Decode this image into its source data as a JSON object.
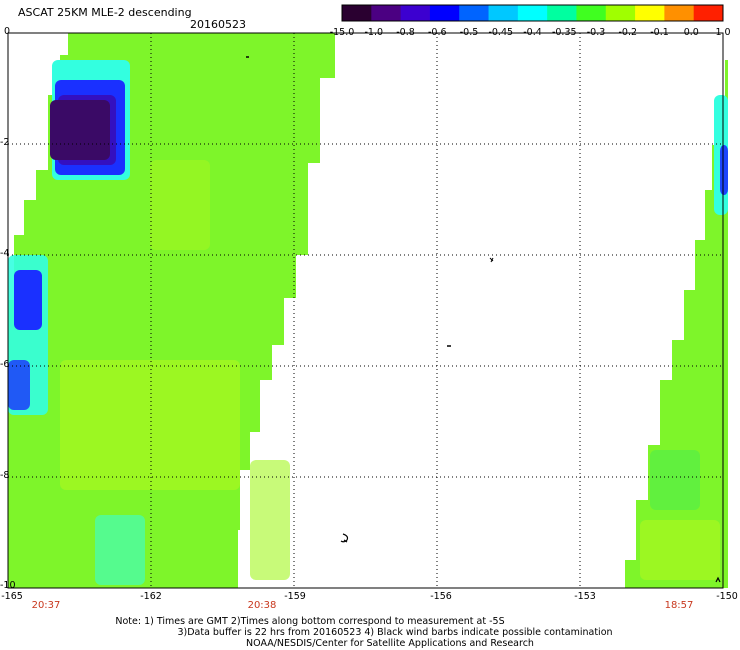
{
  "header": {
    "title": "ASCAT 25KM MLE-2 descending",
    "date": "20160523"
  },
  "colorbar": {
    "labels": [
      "-15.0",
      "-1.0",
      "-0.8",
      "-0.6",
      "-0.5",
      "-0.45",
      "-0.4",
      "-0.35",
      "-0.3",
      "-0.2",
      "-0.1",
      "0.0",
      "1.0"
    ],
    "colors": [
      "#2a0030",
      "#4b0082",
      "#3c00d0",
      "#0000ff",
      "#0064ff",
      "#00c8ff",
      "#00ffff",
      "#00ffa0",
      "#40ff20",
      "#a0ff00",
      "#ffff00",
      "#ff9000",
      "#ff2000"
    ]
  },
  "map": {
    "lon_range": [
      -165,
      -150
    ],
    "lat_range": [
      -10,
      0
    ],
    "lat_labels": [
      "0",
      "-2",
      "-4",
      "-6",
      "-8",
      "-10"
    ],
    "lon_labels": [
      "-165",
      "-162",
      "-159",
      "-156",
      "-153",
      "-150"
    ],
    "colors": {
      "background_green": "#7ef52a",
      "light_green": "#a4f720",
      "cyan": "#33ffe0",
      "blue": "#1a30ff",
      "deep_blue": "#3410c0",
      "purple": "#3a0a66"
    }
  },
  "time_labels": [
    {
      "lon": -164.2,
      "text": "20:37"
    },
    {
      "lon": -159.8,
      "text": "20:38"
    },
    {
      "lon": -150.9,
      "text": "18:57"
    }
  ],
  "notes": {
    "line1": "Note: 1) Times are GMT 2)Times along bottom correspond to measurement at -5S",
    "line2": "3)Data buffer is 22 hrs from 20160523 4) Black wind barbs indicate possible contamination",
    "line3": "NOAA/NESDIS/Center for Satellite Applications and Research"
  }
}
